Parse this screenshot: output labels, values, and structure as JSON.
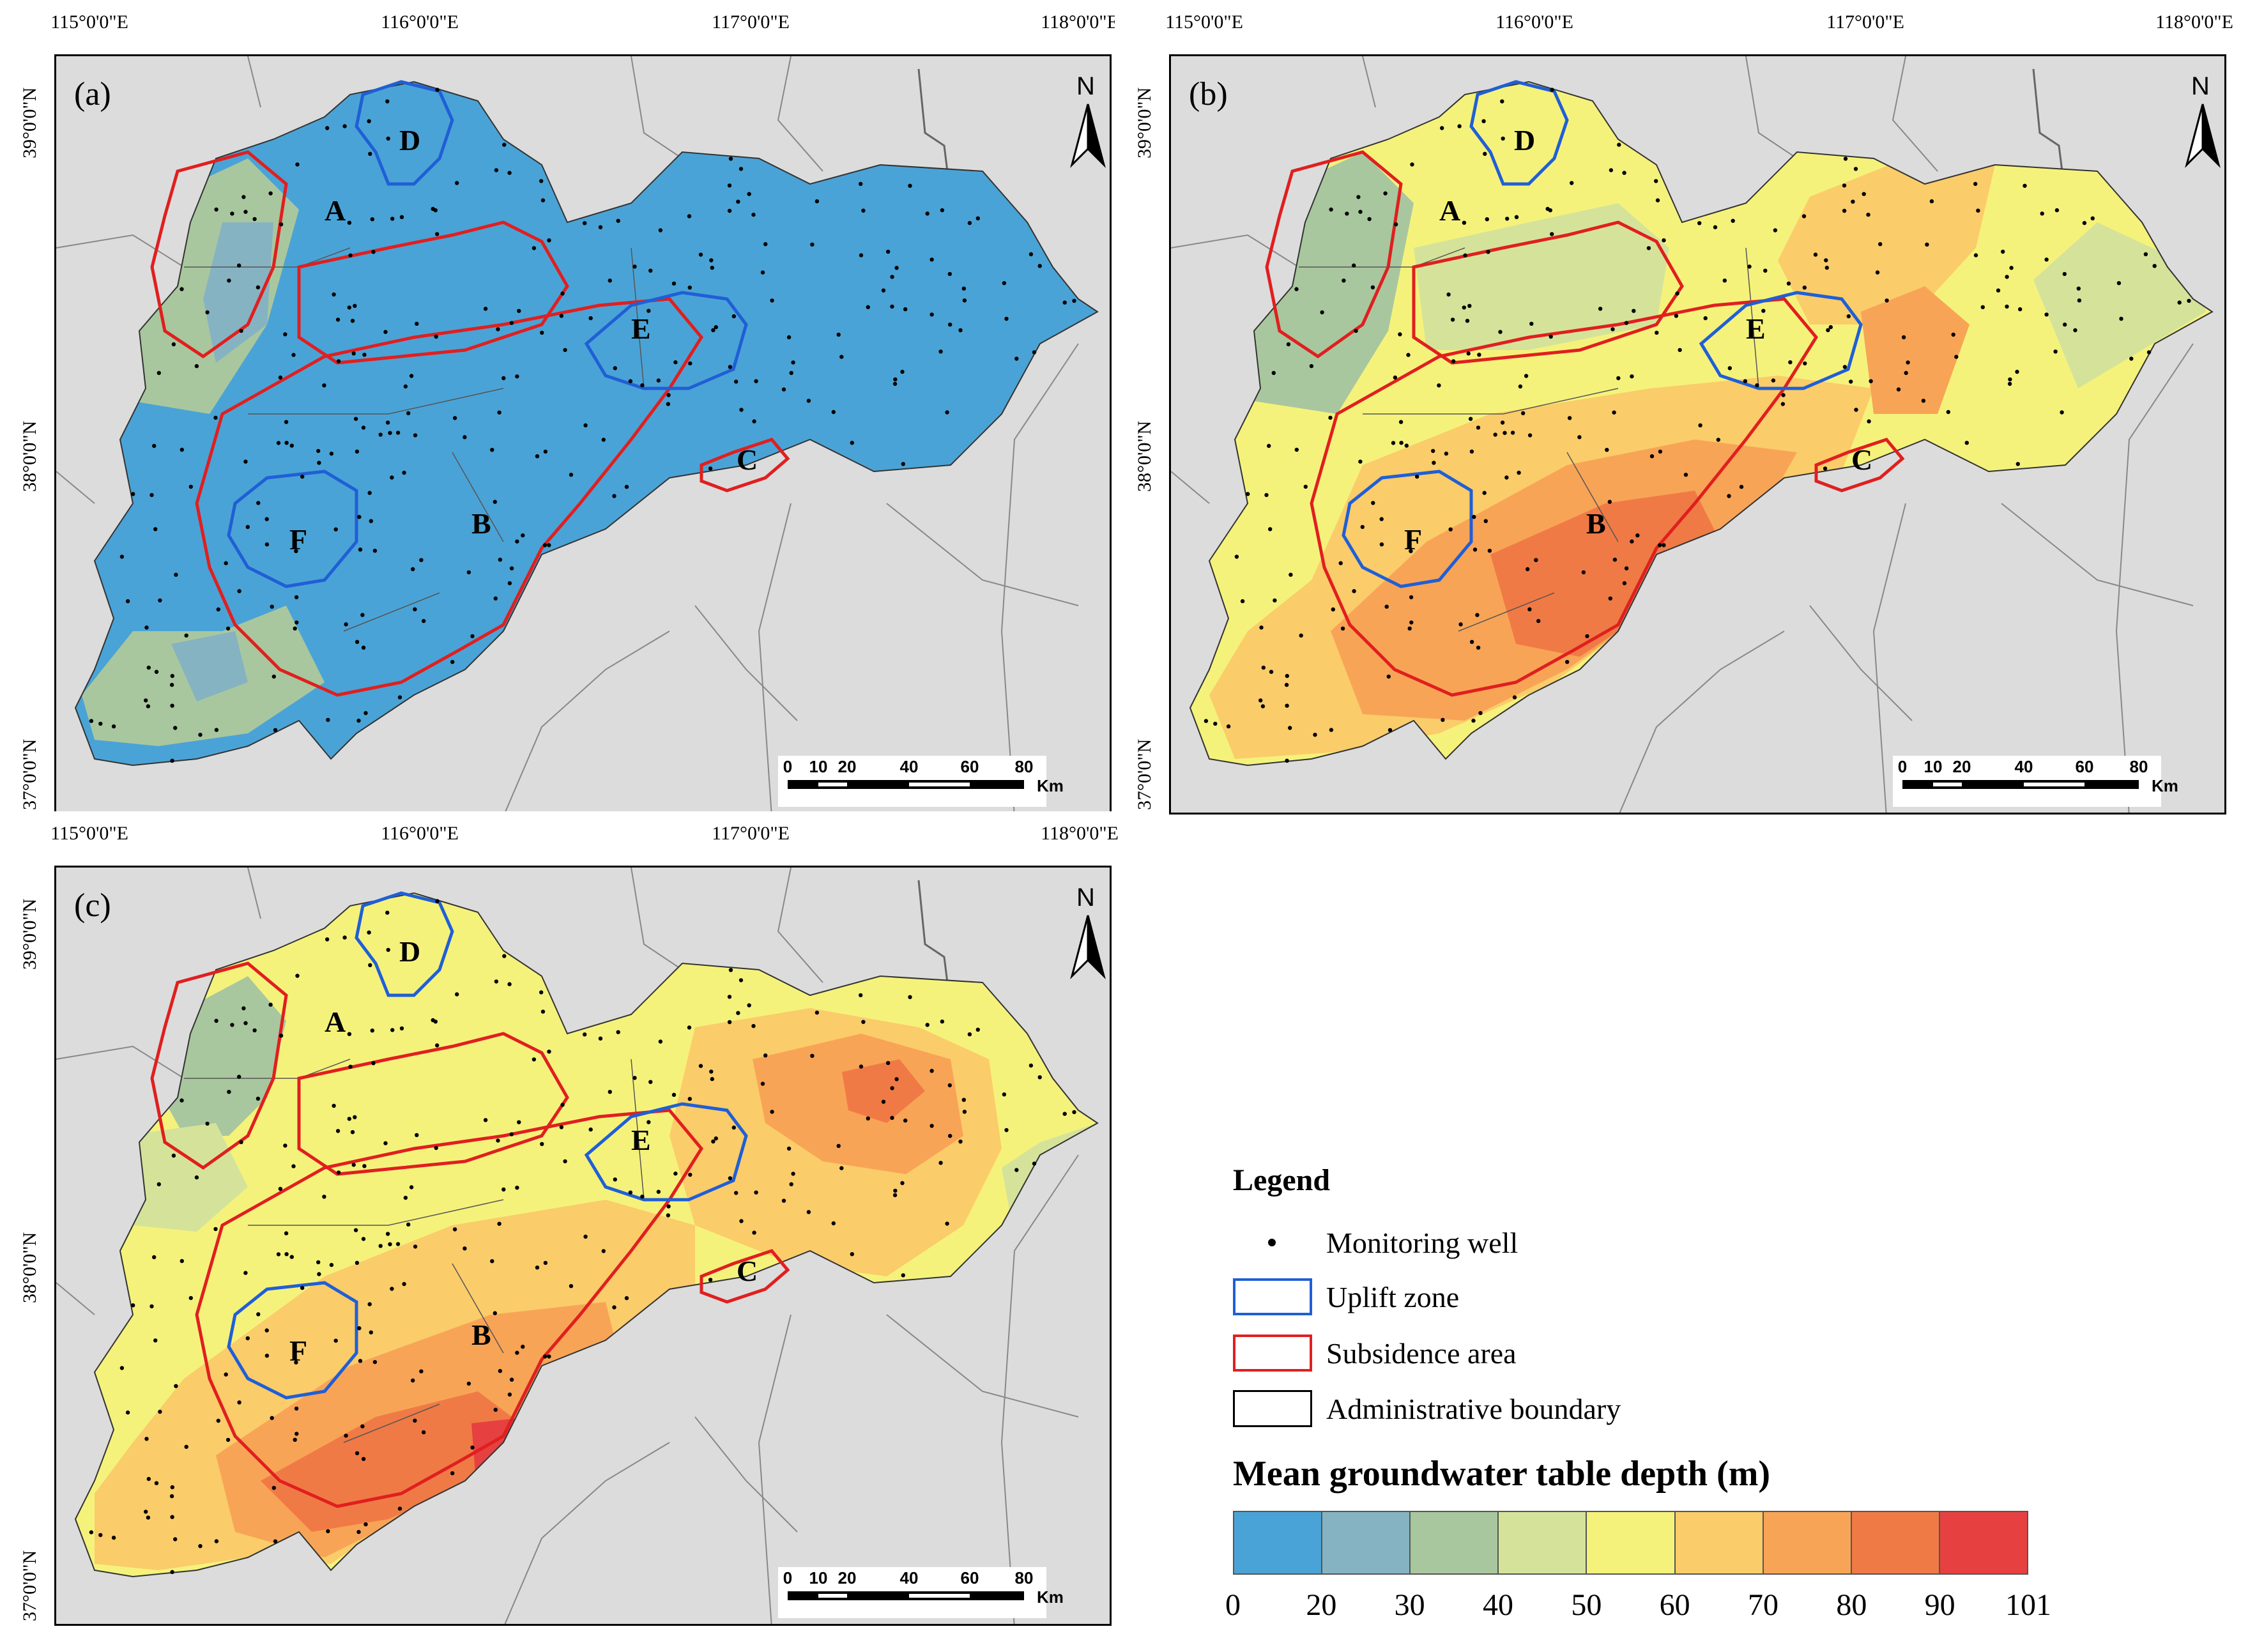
{
  "figure": {
    "lon_ticks": [
      "115°0'0\"E",
      "116°0'0\"E",
      "117°0'0\"E",
      "118°0'0\"E"
    ],
    "lat_ticks": [
      "39°0'0\"N",
      "38°0'0\"N",
      "37°0'0\"N"
    ],
    "north_label": "N",
    "scale": {
      "ticks": [
        "0",
        "10",
        "20",
        "40",
        "60",
        "80"
      ],
      "unit": "Km"
    },
    "zones": {
      "A": "A",
      "B": "B",
      "C": "C",
      "D": "D",
      "E": "E",
      "F": "F"
    },
    "panels": [
      {
        "label": "(a)"
      },
      {
        "label": "(b)"
      },
      {
        "label": "(c)"
      }
    ]
  },
  "legend": {
    "title": "Legend",
    "items": [
      {
        "label": "Monitoring well"
      },
      {
        "label": "Uplift zone"
      },
      {
        "label": "Subsidence area"
      },
      {
        "label": "Administrative boundary"
      }
    ],
    "colorbar_title": "Mean groundwater table depth (m)",
    "colorbar_ticks": [
      "0",
      "20",
      "30",
      "40",
      "50",
      "60",
      "70",
      "80",
      "90",
      "101"
    ],
    "colorbar_colors": [
      "#4aa3d6",
      "#86b3c2",
      "#a9c79e",
      "#d5e39a",
      "#f5f27c",
      "#fbcc6a",
      "#f8a456",
      "#f07a45",
      "#e64040"
    ]
  },
  "colors": {
    "uplift": "#1f5fd6",
    "subsidence": "#e01f1f",
    "background": "#dcdcdc",
    "panel_a_main": "#2f93c6"
  },
  "chart_data": {
    "type": "choropleth map",
    "title": "Mean groundwater table depth (m)",
    "panels": [
      {
        "label": "(a)",
        "dominant_depth_class": "0-20",
        "secondary_classes": [
          "20-30",
          "30-40"
        ]
      },
      {
        "label": "(b)",
        "dominant_depth_class": "50-70",
        "max_depth_class": "80-90"
      },
      {
        "label": "(c)",
        "dominant_depth_class": "60-80",
        "max_depth_class": "90-101"
      }
    ],
    "class_breaks_m": [
      0,
      20,
      30,
      40,
      50,
      60,
      70,
      80,
      90,
      101
    ]
  }
}
